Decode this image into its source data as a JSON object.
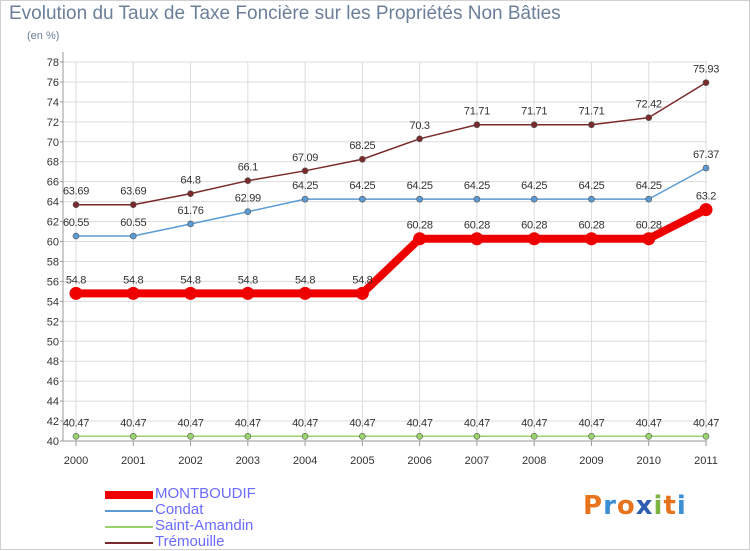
{
  "header": {
    "title": "Evolution du Taux de Taxe Foncière sur les Propriétés Non Bâties",
    "unit": "(en %)"
  },
  "logo": {
    "text": "Proxiti",
    "colors": [
      "#e8731d",
      "#3b8fd4",
      "#e8731d",
      "#2f5fb0",
      "#7cb342",
      "#e8731d",
      "#3b8fd4"
    ]
  },
  "chart_data": {
    "type": "line",
    "x": [
      "2000",
      "2001",
      "2002",
      "2003",
      "2004",
      "2005",
      "2006",
      "2007",
      "2008",
      "2009",
      "2010",
      "2011"
    ],
    "ylim": [
      40,
      78
    ],
    "yticks": [
      40,
      42,
      44,
      46,
      48,
      50,
      52,
      54,
      56,
      58,
      60,
      62,
      64,
      66,
      68,
      70,
      72,
      74,
      76,
      78
    ],
    "grid": true,
    "legend_position": "bottom-left",
    "series": [
      {
        "name": "MONTBOUDIF",
        "color": "#ee0000",
        "width": 8,
        "values": [
          54.8,
          54.8,
          54.8,
          54.8,
          54.8,
          54.8,
          60.28,
          60.28,
          60.28,
          60.28,
          60.28,
          63.2
        ],
        "labels": [
          "54.8",
          "54.8",
          "54.8",
          "54.8",
          "54.8",
          "54.8",
          "60.28",
          "60.28",
          "60.28",
          "60.28",
          "60.28",
          "63.2"
        ]
      },
      {
        "name": "Condat",
        "color": "#5b9bd5",
        "width": 1.5,
        "values": [
          60.55,
          60.55,
          61.76,
          62.99,
          64.25,
          64.25,
          64.25,
          64.25,
          64.25,
          64.25,
          64.25,
          67.37
        ],
        "labels": [
          "60.55",
          "60.55",
          "61.76",
          "62.99",
          "64.25",
          "64.25",
          "64.25",
          "64.25",
          "64.25",
          "64.25",
          "64.25",
          "67.37"
        ]
      },
      {
        "name": "Saint-Amandin",
        "color": "#99d36b",
        "width": 1.5,
        "values": [
          40.47,
          40.47,
          40.47,
          40.47,
          40.47,
          40.47,
          40.47,
          40.47,
          40.47,
          40.47,
          40.47,
          40.47
        ],
        "labels": [
          "40.47",
          "40.47",
          "40.47",
          "40.47",
          "40.47",
          "40.47",
          "40.47",
          "40.47",
          "40.47",
          "40.47",
          "40.47",
          "40.47"
        ]
      },
      {
        "name": "Trémouille",
        "color": "#7a2a2a",
        "width": 1.5,
        "values": [
          63.69,
          63.69,
          64.8,
          66.1,
          67.09,
          68.25,
          70.3,
          71.71,
          71.71,
          71.71,
          72.42,
          75.93
        ],
        "labels": [
          "63.69",
          "63.69",
          "64.8",
          "66.1",
          "67.09",
          "68.25",
          "70.3",
          "71.71",
          "71.71",
          "71.71",
          "72.42",
          "75.93"
        ]
      }
    ]
  }
}
